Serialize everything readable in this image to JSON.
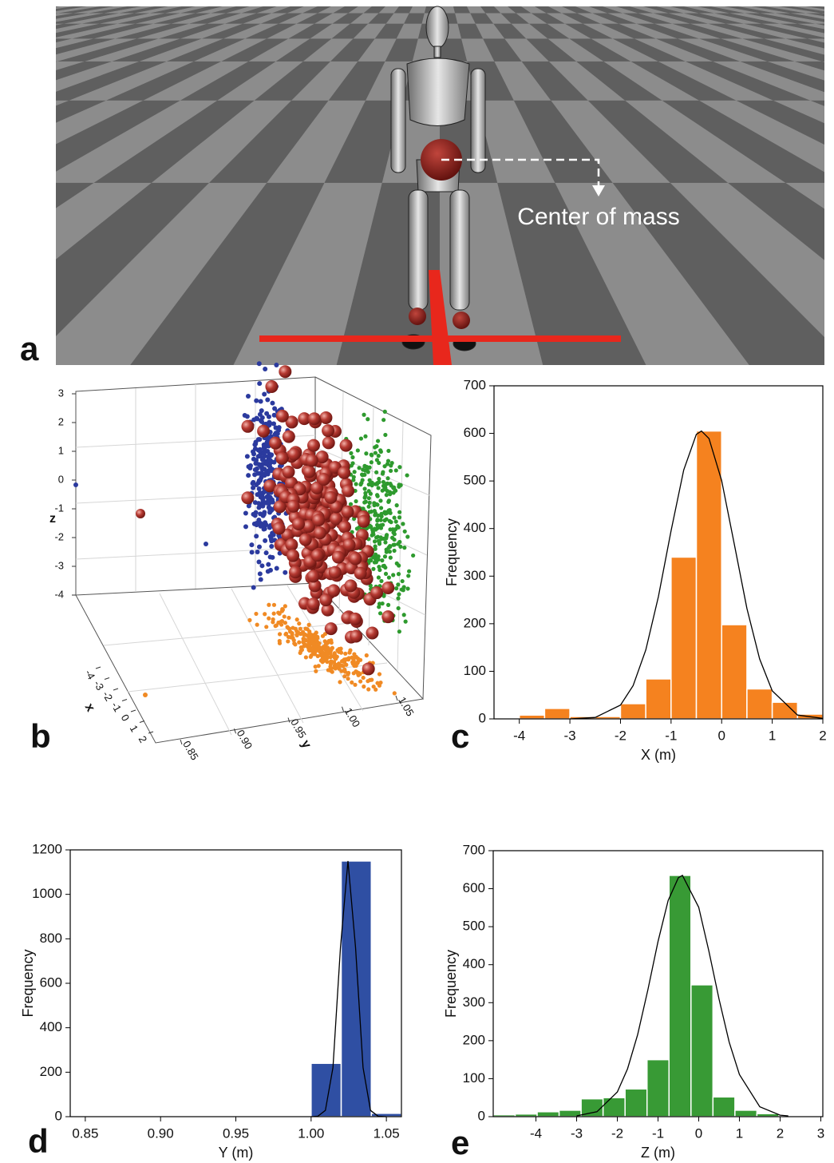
{
  "chart_data": [
    {
      "type": "scene",
      "label": "a",
      "annotation": "Center of mass"
    },
    {
      "type": "scatter3d",
      "label": "b",
      "xlabel": "x",
      "ylabel": "y",
      "zlabel": "z",
      "xlim": [
        -4,
        2
      ],
      "xticks": [
        -4,
        -3,
        -2,
        -1,
        0,
        1,
        2
      ],
      "ylim": [
        0.85,
        1.05
      ],
      "yticks": [
        0.85,
        {
          "value": 0.9,
          "label": "0.90"
        },
        0.95,
        {
          "value": 1,
          "label": "1.00"
        },
        1.05
      ],
      "zlim": [
        -4,
        3
      ],
      "zticks": [
        3,
        2,
        1,
        0,
        -1,
        -2,
        -3,
        -4
      ]
    },
    {
      "type": "histogram",
      "label": "c",
      "xlabel": "X (m)",
      "ylabel": "Frequency",
      "color": "#f5821f",
      "bins": [
        -4,
        -3.5,
        -3,
        -2.5,
        -2,
        -1.5,
        -1,
        -0.5,
        0,
        0.5,
        1,
        1.5,
        2
      ],
      "counts": [
        8,
        22,
        5,
        5,
        32,
        84,
        340,
        605,
        198,
        63,
        35,
        10
      ],
      "xlim": [
        -4.5,
        2
      ],
      "xticks": [
        -4,
        -3,
        -2,
        -1,
        0,
        1,
        2
      ],
      "ylim": [
        0,
        700
      ],
      "yticks": [
        0,
        100,
        200,
        300,
        400,
        500,
        600,
        700
      ],
      "fit": {
        "x": [
          -3,
          -2.5,
          -2,
          -1.75,
          -1.5,
          -1.25,
          -1,
          -0.75,
          -0.5,
          -0.4,
          -0.25,
          0,
          0.25,
          0.5,
          0.75,
          1,
          1.5,
          2
        ],
        "y": [
          0,
          3,
          29,
          70,
          145,
          257,
          395,
          523,
          598,
          605,
          589,
          501,
          367,
          232,
          126,
          59,
          8,
          1
        ]
      }
    },
    {
      "type": "histogram",
      "label": "d",
      "xlabel": "Y (m)",
      "ylabel": "Frequency",
      "color": "#2f4fa3",
      "bins": [
        0.84,
        0.86,
        0.88,
        0.9,
        0.92,
        0.94,
        0.96,
        0.98,
        1,
        1.02,
        1.04,
        1.06
      ],
      "counts": [
        2,
        0,
        0,
        0,
        0,
        2,
        0,
        2,
        240,
        1150,
        15
      ],
      "xlim": [
        0.84,
        1.06
      ],
      "xticks": [
        0.85,
        {
          "value": 0.9,
          "label": "0.90"
        },
        0.95,
        {
          "value": 1,
          "label": "1.00"
        },
        1.05
      ],
      "ylim": [
        0,
        1200
      ],
      "yticks": [
        0,
        200,
        400,
        600,
        800,
        1000,
        1200
      ],
      "fit": {
        "x": [
          1,
          1.0045,
          1.0095,
          1.0145,
          1.0195,
          1.0245,
          1.0295,
          1.0345,
          1.0395,
          1.0445,
          1.05
        ],
        "y": [
          0,
          2,
          28,
          221,
          761,
          1150,
          761,
          221,
          28,
          2,
          0
        ]
      }
    },
    {
      "type": "histogram",
      "label": "e",
      "xlabel": "Z (m)",
      "ylabel": "Frequency",
      "color": "#389a35",
      "bins": [
        -5.05,
        -4.51,
        -3.97,
        -3.43,
        -2.89,
        -2.35,
        -1.81,
        -1.27,
        -0.73,
        -0.19,
        0.35,
        0.89,
        1.43,
        1.97,
        2.51,
        3.05
      ],
      "counts": [
        5,
        7,
        13,
        17,
        47,
        50,
        73,
        150,
        635,
        347,
        52,
        17,
        8,
        0,
        2
      ],
      "xlim": [
        -5.05,
        3.05
      ],
      "xticks": [
        -4,
        -3,
        -2,
        -1,
        0,
        1,
        2,
        3
      ],
      "ylim": [
        0,
        700
      ],
      "yticks": [
        0,
        100,
        200,
        300,
        400,
        500,
        600,
        700
      ],
      "fit": {
        "x": [
          -3,
          -2.5,
          -2,
          -1.75,
          -1.5,
          -1.25,
          -1,
          -0.75,
          -0.5,
          -0.4,
          0,
          0.25,
          0.5,
          0.75,
          1,
          1.5,
          2,
          2.2
        ],
        "y": [
          2,
          13,
          65,
          126,
          216,
          334,
          461,
          569,
          629,
          635,
          551,
          436,
          309,
          196,
          111,
          26,
          4,
          2
        ]
      }
    }
  ]
}
